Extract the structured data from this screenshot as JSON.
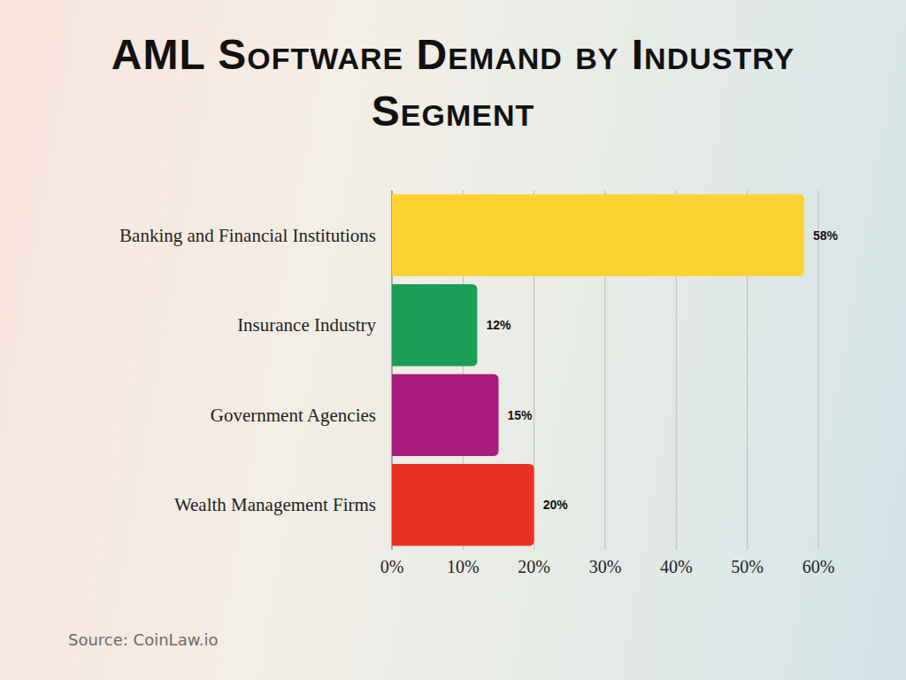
{
  "chart_data": {
    "type": "bar",
    "title": "AML Software Demand by Industry Segment",
    "source": "Source: CoinLaw.io",
    "orientation": "horizontal",
    "categories": [
      "Banking and Financial Institutions",
      "Insurance Industry",
      "Government Agencies",
      "Wealth Management Firms"
    ],
    "values": [
      58,
      12,
      15,
      20
    ],
    "value_labels": [
      "58%",
      "12%",
      "15%",
      "20%"
    ],
    "colors": [
      "#ffd233",
      "#1a9e55",
      "#a91c7d",
      "#e83223"
    ],
    "xlim": [
      0,
      60
    ],
    "xticks": [
      {
        "value": 0,
        "label": "0%"
      },
      {
        "value": 10,
        "label": "10%"
      },
      {
        "value": 20,
        "label": "20%"
      },
      {
        "value": 30,
        "label": "30%"
      },
      {
        "value": 40,
        "label": "40%"
      },
      {
        "value": 50,
        "label": "50%"
      },
      {
        "value": 60,
        "label": "60%"
      }
    ],
    "grid": true,
    "data_labels": true
  }
}
